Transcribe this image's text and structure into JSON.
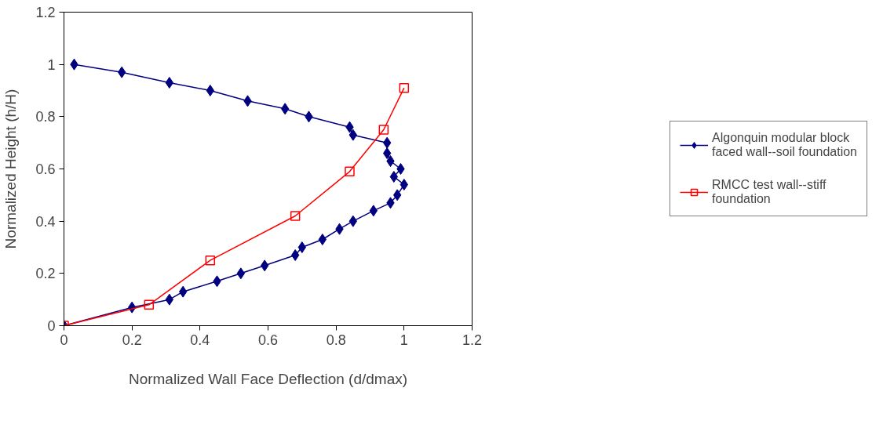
{
  "chart_data": {
    "type": "line",
    "xlabel": "Normalized Wall Face Deflection (d/dmax)",
    "ylabel": "Normalized Height (h/H)",
    "xlim": [
      0,
      1.2
    ],
    "ylim": [
      0,
      1.2
    ],
    "xticks": [
      0,
      0.2,
      0.4,
      0.6,
      0.8,
      1,
      1.2
    ],
    "yticks": [
      0,
      0.2,
      0.4,
      0.6,
      0.8,
      1,
      1.2
    ],
    "grid": false,
    "legend": "right",
    "line_style": "solid",
    "series": [
      {
        "name": "Algonquin modular block faced wall--soil foundation",
        "color": "#000080",
        "marker": "diamond",
        "x": [
          0.03,
          0.17,
          0.31,
          0.43,
          0.54,
          0.65,
          0.72,
          0.84,
          0.85,
          0.95,
          0.95,
          0.96,
          0.99,
          0.97,
          1.0,
          0.98,
          0.96,
          0.91,
          0.85,
          0.81,
          0.76,
          0.7,
          0.68,
          0.59,
          0.52,
          0.45,
          0.35,
          0.31,
          0.2,
          0
        ],
        "values": [
          1.0,
          0.97,
          0.93,
          0.9,
          0.86,
          0.83,
          0.8,
          0.76,
          0.73,
          0.7,
          0.66,
          0.63,
          0.6,
          0.57,
          0.54,
          0.5,
          0.47,
          0.44,
          0.4,
          0.37,
          0.33,
          0.3,
          0.27,
          0.23,
          0.2,
          0.17,
          0.13,
          0.1,
          0.07,
          0
        ]
      },
      {
        "name": "RMCC test wall--stiff foundation",
        "color": "#ff0000",
        "marker": "square",
        "x": [
          0,
          0.25,
          0.43,
          0.68,
          0.84,
          0.94,
          1.0
        ],
        "values": [
          0,
          0.08,
          0.25,
          0.42,
          0.59,
          0.75,
          0.91
        ]
      }
    ]
  }
}
